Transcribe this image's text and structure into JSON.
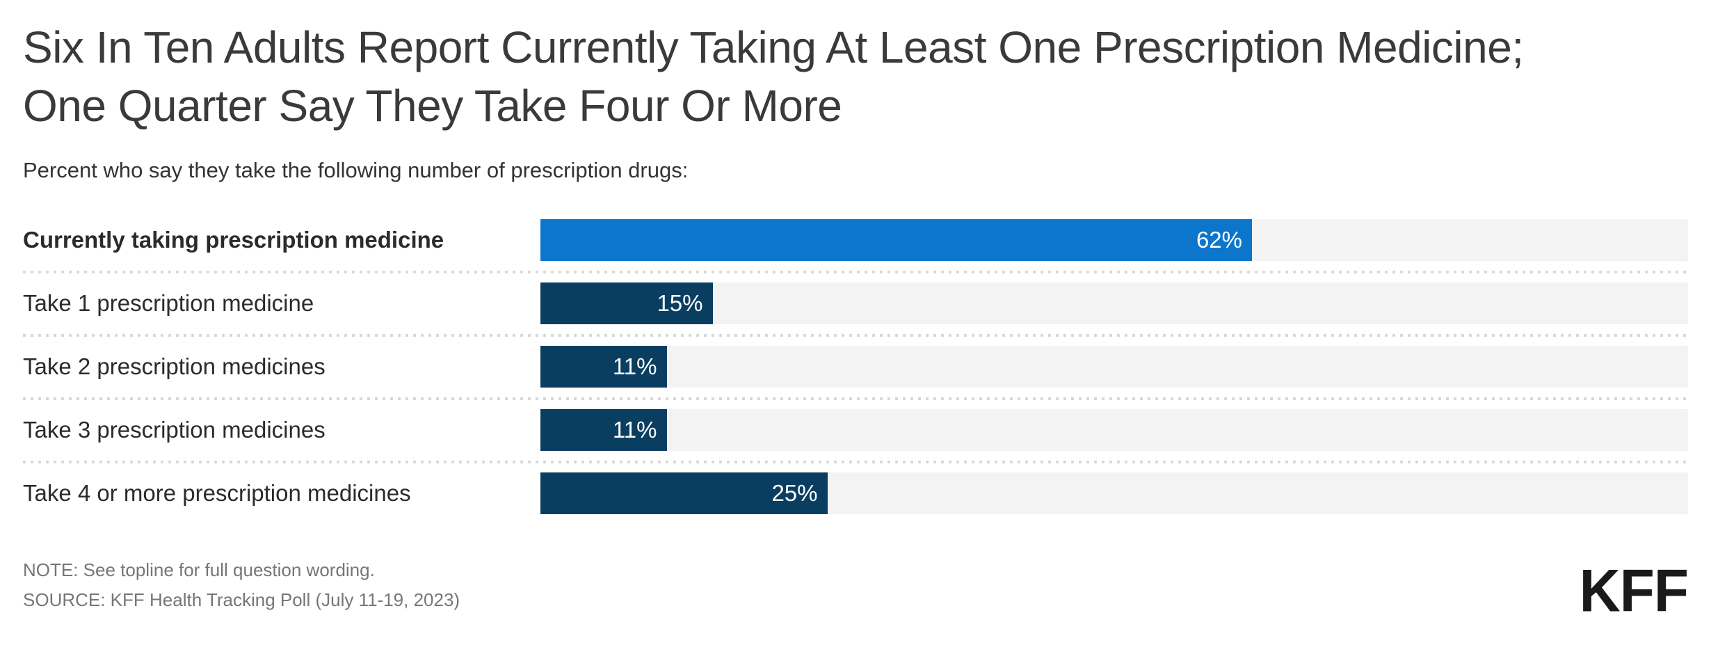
{
  "header": {
    "title": "Six In Ten Adults Report Currently Taking At Least One Prescription Medicine; One Quarter Say They Take Four Or More",
    "subtitle": "Percent who say they take the following number of prescription drugs:"
  },
  "chart_data": {
    "type": "bar",
    "orientation": "horizontal",
    "categories": [
      "Currently taking prescription medicine",
      "Take 1 prescription medicine",
      "Take 2 prescription medicines",
      "Take 3 prescription medicines",
      "Take 4 or more prescription medicines"
    ],
    "values": [
      62,
      15,
      11,
      11,
      25
    ],
    "value_labels": [
      "62%",
      "15%",
      "11%",
      "11%",
      "25%"
    ],
    "xlim": [
      0,
      100
    ],
    "bar_colors": [
      "#0b76cc",
      "#0a3e61",
      "#0a3e61",
      "#0a3e61",
      "#0a3e61"
    ],
    "track_color": "#f3f3f3",
    "label_bold": [
      true,
      false,
      false,
      false,
      false
    ],
    "grid": false,
    "legend": false
  },
  "footer": {
    "note": "NOTE: See topline for full question wording.",
    "source": "SOURCE: KFF Health Tracking Poll (July 11-19, 2023)",
    "logo_text": "KFF"
  }
}
